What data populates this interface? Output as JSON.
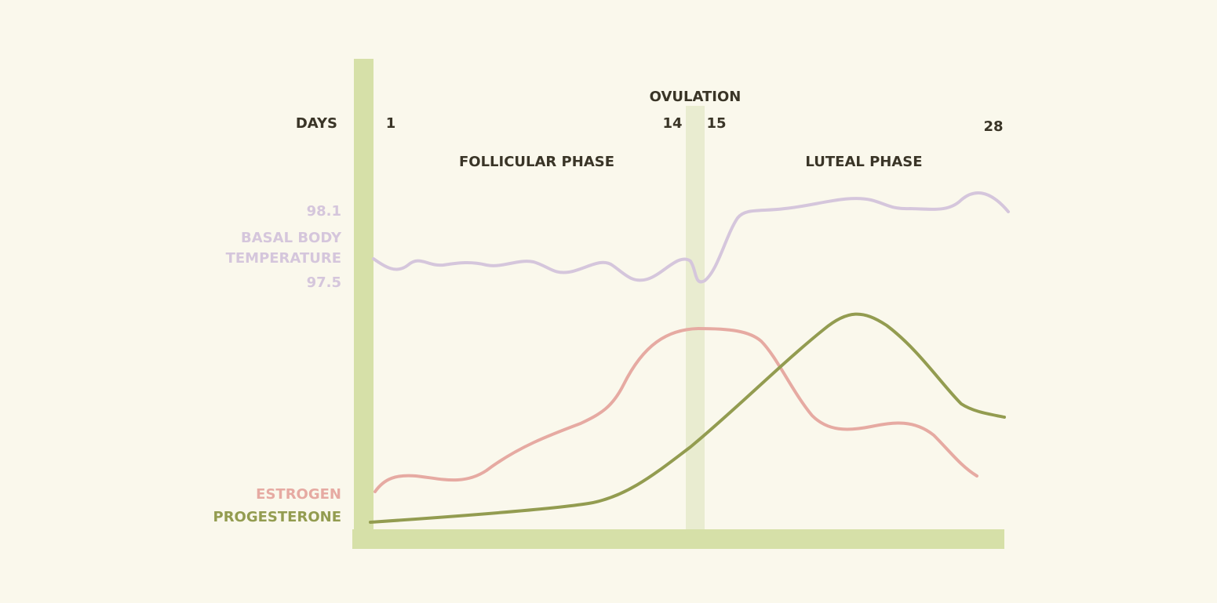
{
  "axis": {
    "label": "DAYS",
    "days": [
      "1",
      "14",
      "15",
      "28"
    ]
  },
  "ovulation": "OVULATION",
  "phases": [
    "FOLLICULAR PHASE",
    "LUTEAL PHASE"
  ],
  "temperature": {
    "high": "98.1",
    "label": [
      "BASAL BODY",
      "TEMPERATURE"
    ],
    "low": "97.5"
  },
  "hormones": [
    "ESTROGEN",
    "PROGESTERONE"
  ]
}
